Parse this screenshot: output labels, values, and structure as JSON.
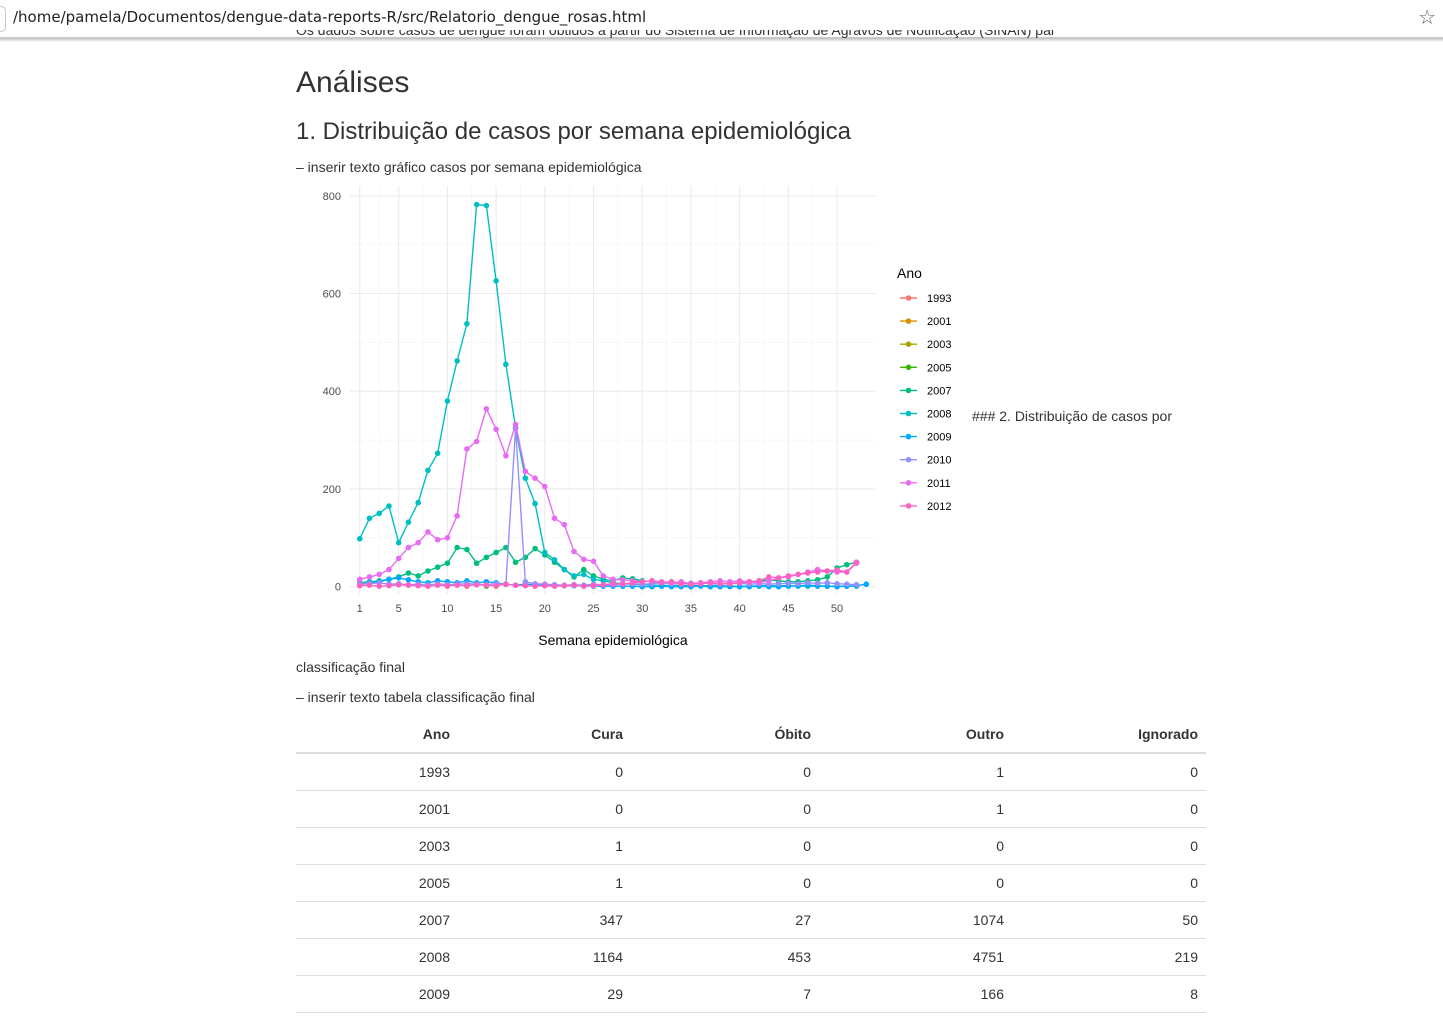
{
  "browser": {
    "url": "/home/pamela/Documentos/dengue-data-reports-R/src/Relatorio_dengue_rosas.html",
    "star_icon": "☆"
  },
  "page": {
    "cut_text": "Os dados sobre casos de dengue foram obtidos a partir do Sistema de Informação de Agravos de Notificação (SINAN) para o período (ano)",
    "title": "Análises",
    "section1": {
      "heading": "1. Distribuição de casos por semana epidemiológica",
      "text": "– inserir texto gráfico casos por semana epidemiológica"
    },
    "stray_heading": "### 2. Distribuição de casos por",
    "section2_continued": "classificação final",
    "section2_text": "– inserir texto tabela classificação final"
  },
  "chart_data": {
    "type": "line",
    "xlabel": "Semana epidemiológica",
    "ylabel": "",
    "xlim": [
      0,
      54
    ],
    "ylim": [
      -15,
      820
    ],
    "xticks": [
      1,
      5,
      10,
      15,
      20,
      25,
      30,
      35,
      40,
      45,
      50
    ],
    "yticks": [
      0,
      200,
      400,
      600,
      800
    ],
    "grid": true,
    "legend_title": "Ano",
    "legend_position": "right",
    "series": [
      {
        "name": "1993",
        "color": "#F8766D",
        "x": [
          10
        ],
        "y": [
          1
        ]
      },
      {
        "name": "2001",
        "color": "#D89000",
        "x": [
          15
        ],
        "y": [
          1
        ]
      },
      {
        "name": "2003",
        "color": "#A3A500",
        "x": [
          12
        ],
        "y": [
          1
        ]
      },
      {
        "name": "2005",
        "color": "#39B600",
        "x": [
          14
        ],
        "y": [
          1
        ]
      },
      {
        "name": "2007",
        "color": "#00BF7D",
        "x": [
          1,
          2,
          3,
          4,
          5,
          6,
          7,
          8,
          9,
          10,
          11,
          12,
          13,
          14,
          15,
          16,
          17,
          18,
          19,
          20,
          21,
          22,
          23,
          24,
          25,
          26,
          27,
          28,
          29,
          30,
          31,
          32,
          33,
          34,
          35,
          36,
          37,
          38,
          39,
          40,
          41,
          42,
          43,
          44,
          45,
          46,
          47,
          48,
          49,
          50,
          51,
          52
        ],
        "y": [
          8,
          10,
          12,
          15,
          20,
          28,
          22,
          32,
          40,
          48,
          80,
          76,
          48,
          60,
          70,
          80,
          50,
          60,
          78,
          65,
          50,
          35,
          20,
          35,
          22,
          15,
          12,
          18,
          16,
          12,
          10,
          8,
          10,
          8,
          7,
          6,
          8,
          6,
          7,
          8,
          10,
          12,
          14,
          12,
          10,
          10,
          12,
          14,
          20,
          38,
          45,
          50
        ]
      },
      {
        "name": "2008",
        "color": "#00BFC4",
        "x": [
          1,
          2,
          3,
          4,
          5,
          6,
          7,
          8,
          9,
          10,
          11,
          12,
          13,
          14,
          15,
          16,
          17,
          18,
          19,
          20,
          21,
          22,
          23,
          24,
          25,
          26,
          27,
          28,
          29,
          30,
          31,
          32,
          33,
          34,
          35,
          36,
          37,
          38,
          39,
          40,
          41,
          42,
          43,
          44,
          45,
          46,
          47,
          48,
          49,
          50,
          51,
          52
        ],
        "y": [
          98,
          140,
          150,
          165,
          90,
          132,
          172,
          238,
          273,
          380,
          462,
          538,
          782,
          780,
          626,
          455,
          325,
          222,
          170,
          70,
          55,
          35,
          22,
          25,
          15,
          12,
          8,
          6,
          5,
          4,
          3,
          3,
          2,
          2,
          2,
          2,
          2,
          2,
          1,
          1,
          1,
          2,
          2,
          2,
          2,
          1,
          1,
          1,
          1,
          1,
          1,
          1
        ]
      },
      {
        "name": "2009",
        "color": "#00A9FF",
        "x": [
          1,
          2,
          3,
          4,
          5,
          6,
          7,
          8,
          9,
          10,
          11,
          12,
          13,
          14,
          15,
          16,
          17,
          18,
          19,
          20,
          21,
          22,
          23,
          24,
          25,
          26,
          27,
          28,
          29,
          30,
          31,
          32,
          33,
          34,
          35,
          36,
          37,
          38,
          39,
          40,
          41,
          42,
          43,
          44,
          45,
          46,
          47,
          48,
          49,
          50,
          51,
          52,
          53
        ],
        "y": [
          5,
          8,
          10,
          15,
          18,
          14,
          10,
          8,
          12,
          10,
          8,
          12,
          8,
          10,
          8,
          5,
          3,
          5,
          4,
          4,
          3,
          2,
          2,
          2,
          1,
          1,
          1,
          1,
          1,
          0,
          0,
          1,
          0,
          0,
          0,
          1,
          0,
          0,
          0,
          0,
          0,
          1,
          0,
          0,
          1,
          2,
          3,
          2,
          1,
          0,
          1,
          2,
          5
        ]
      },
      {
        "name": "2010",
        "color": "#9590FF",
        "x": [
          1,
          2,
          3,
          4,
          5,
          6,
          7,
          8,
          9,
          10,
          11,
          12,
          13,
          14,
          15,
          16,
          17,
          18,
          19,
          20,
          21,
          22,
          23,
          24,
          25,
          26,
          27,
          28,
          29,
          30,
          31,
          32,
          33,
          34,
          35,
          36,
          37,
          38,
          39,
          40,
          41,
          42,
          43,
          44,
          45,
          46,
          47,
          48,
          49,
          50,
          51,
          52
        ],
        "y": [
          5,
          6,
          8,
          5,
          6,
          4,
          5,
          3,
          6,
          4,
          5,
          6,
          5,
          4,
          6,
          5,
          324,
          10,
          6,
          5,
          4,
          3,
          4,
          3,
          5,
          3,
          4,
          5,
          6,
          5,
          6,
          8,
          6,
          5,
          7,
          8,
          6,
          5,
          6,
          7,
          5,
          6,
          5,
          6,
          7,
          6,
          8,
          7,
          8,
          6,
          5,
          4
        ]
      },
      {
        "name": "2011",
        "color": "#E76BF3",
        "x": [
          1,
          2,
          3,
          4,
          5,
          6,
          7,
          8,
          9,
          10,
          11,
          12,
          13,
          14,
          15,
          16,
          17,
          18,
          19,
          20,
          21,
          22,
          23,
          24,
          25,
          26,
          27,
          28,
          29,
          30,
          31,
          32,
          33,
          34,
          35,
          36,
          37,
          38,
          39,
          40,
          41,
          42,
          43,
          44,
          45,
          46,
          47,
          48,
          49,
          50,
          51,
          52
        ],
        "y": [
          15,
          20,
          25,
          35,
          58,
          80,
          90,
          112,
          96,
          100,
          145,
          282,
          297,
          364,
          322,
          268,
          332,
          236,
          222,
          205,
          140,
          127,
          72,
          56,
          52,
          22,
          15,
          14,
          12,
          10,
          12,
          10,
          8,
          10,
          6,
          8,
          10,
          12,
          10,
          12,
          10,
          8,
          12,
          18,
          20,
          25,
          30,
          35,
          32,
          30,
          30,
          48
        ]
      },
      {
        "name": "2012",
        "color": "#FF61C3",
        "x": [
          1,
          2,
          3,
          4,
          5,
          6,
          7,
          8,
          9,
          10,
          11,
          12,
          13,
          14,
          15,
          16,
          17,
          18,
          19,
          20,
          21,
          22,
          23,
          24,
          25,
          26,
          27,
          28,
          29,
          30,
          31,
          32,
          33,
          34,
          35,
          36,
          37,
          38,
          39,
          40,
          41,
          42,
          43,
          44,
          45,
          46,
          47,
          48,
          49,
          50,
          51,
          52
        ],
        "y": [
          2,
          3,
          1,
          2,
          4,
          3,
          2,
          1,
          3,
          2,
          3,
          2,
          4,
          3,
          2,
          5,
          3,
          2,
          1,
          2,
          1,
          2,
          3,
          1,
          2,
          4,
          6,
          5,
          8,
          10,
          12,
          8,
          10,
          6,
          5,
          6,
          8,
          7,
          6,
          8,
          10,
          12,
          20,
          18,
          22,
          25,
          28,
          30,
          32,
          34,
          30,
          50
        ]
      }
    ]
  },
  "table": {
    "headers": [
      "Ano",
      "Cura",
      "Óbito",
      "Outro",
      "Ignorado"
    ],
    "rows": [
      [
        "1993",
        "0",
        "0",
        "1",
        "0"
      ],
      [
        "2001",
        "0",
        "0",
        "1",
        "0"
      ],
      [
        "2003",
        "1",
        "0",
        "0",
        "0"
      ],
      [
        "2005",
        "1",
        "0",
        "0",
        "0"
      ],
      [
        "2007",
        "347",
        "27",
        "1074",
        "50"
      ],
      [
        "2008",
        "1164",
        "453",
        "4751",
        "219"
      ],
      [
        "2009",
        "29",
        "7",
        "166",
        "8"
      ]
    ]
  }
}
